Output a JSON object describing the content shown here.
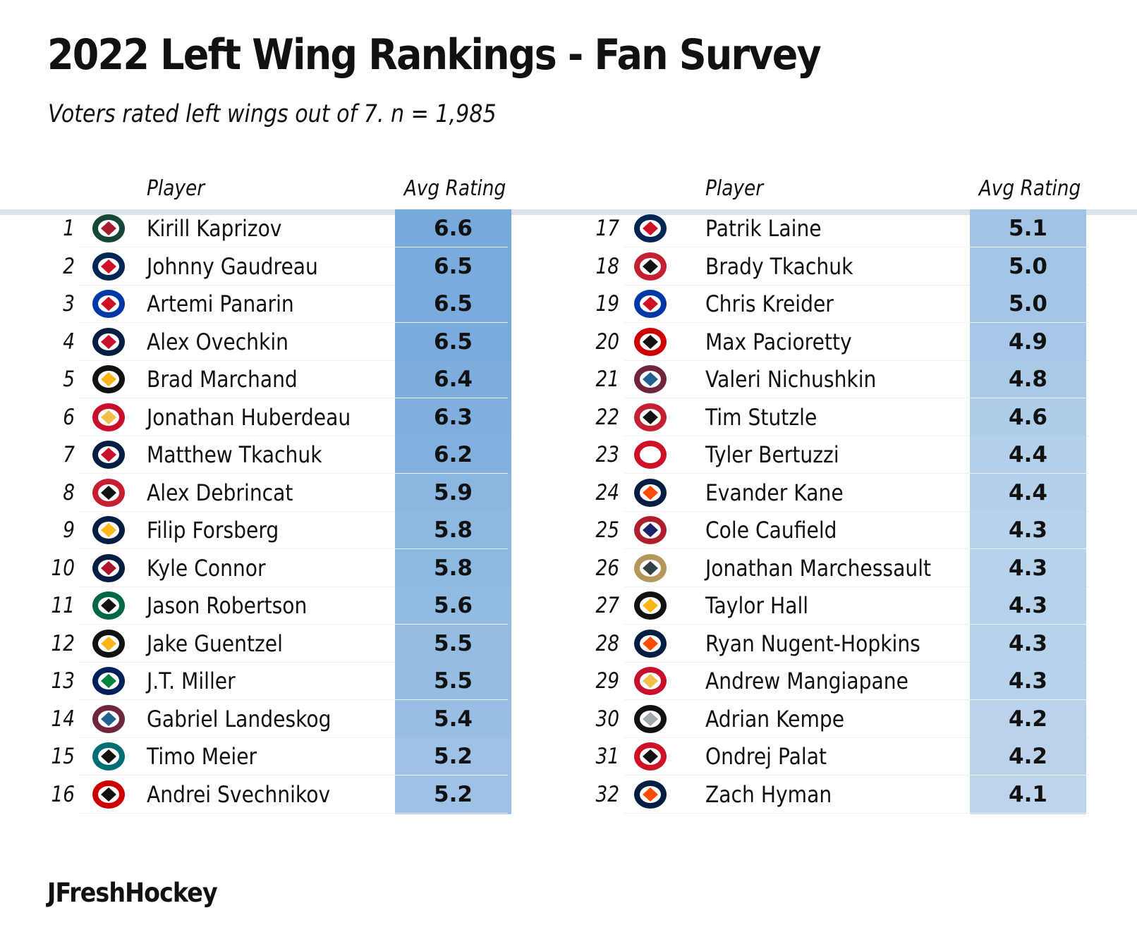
{
  "title": "2022 Left Wing Rankings - Fan Survey",
  "subtitle": "Voters rated left wings out of 7. n = 1,985",
  "credit": "JFreshHockey",
  "columns": {
    "player": "Player",
    "rating": "Avg Rating"
  },
  "colors": {
    "high": "#76aadb",
    "low": "#bdd5ec",
    "header_rule": "#dce3eb"
  },
  "team_colors": {
    "MIN": [
      "#154734",
      "#a6192e"
    ],
    "CBJ": [
      "#002654",
      "#ce1126"
    ],
    "NYR": [
      "#0038a8",
      "#ce1126"
    ],
    "WSH": [
      "#041e42",
      "#c8102e"
    ],
    "BOS": [
      "#111111",
      "#fcb514"
    ],
    "CGY": [
      "#c8102e",
      "#f1be48"
    ],
    "FLA": [
      "#041e42",
      "#c8102e"
    ],
    "OTT": [
      "#c52032",
      "#111111"
    ],
    "NSH": [
      "#041e42",
      "#ffb81c"
    ],
    "WPG": [
      "#041e42",
      "#ac162c"
    ],
    "DAL": [
      "#006847",
      "#111111"
    ],
    "PIT": [
      "#111111",
      "#fcb514"
    ],
    "VAN": [
      "#00205b",
      "#00843d"
    ],
    "COL": [
      "#6f263d",
      "#236192"
    ],
    "SJS": [
      "#006d75",
      "#111111"
    ],
    "CAR": [
      "#cc0000",
      "#111111"
    ],
    "DET": [
      "#ce1126",
      "#ffffff"
    ],
    "EDM": [
      "#041e42",
      "#ff4c00"
    ],
    "MTL": [
      "#af1e2d",
      "#192168"
    ],
    "VGK": [
      "#b4975a",
      "#333f42"
    ],
    "LAK": [
      "#111111",
      "#a2aaad"
    ],
    "NJD": [
      "#ce1126",
      "#111111"
    ]
  },
  "chart_data": {
    "type": "table",
    "rating_max": 7,
    "rating_range": [
      4.1,
      6.6
    ],
    "rows": [
      {
        "rank": "1",
        "player": "Kirill Kaprizov",
        "team": "MIN",
        "rating": 6.6,
        "rating_label": "6.6"
      },
      {
        "rank": "2",
        "player": "Johnny Gaudreau",
        "team": "CBJ",
        "rating": 6.5,
        "rating_label": "6.5"
      },
      {
        "rank": "3",
        "player": "Artemi Panarin",
        "team": "NYR",
        "rating": 6.5,
        "rating_label": "6.5"
      },
      {
        "rank": "4",
        "player": "Alex Ovechkin",
        "team": "WSH",
        "rating": 6.5,
        "rating_label": "6.5"
      },
      {
        "rank": "5",
        "player": "Brad Marchand",
        "team": "BOS",
        "rating": 6.4,
        "rating_label": "6.4"
      },
      {
        "rank": "6",
        "player": "Jonathan Huberdeau",
        "team": "CGY",
        "rating": 6.3,
        "rating_label": "6.3"
      },
      {
        "rank": "7",
        "player": "Matthew Tkachuk",
        "team": "FLA",
        "rating": 6.2,
        "rating_label": "6.2"
      },
      {
        "rank": "8",
        "player": "Alex Debrincat",
        "team": "OTT",
        "rating": 5.9,
        "rating_label": "5.9"
      },
      {
        "rank": "9",
        "player": "Filip Forsberg",
        "team": "NSH",
        "rating": 5.8,
        "rating_label": "5.8"
      },
      {
        "rank": "10",
        "player": "Kyle Connor",
        "team": "WPG",
        "rating": 5.8,
        "rating_label": "5.8"
      },
      {
        "rank": "11",
        "player": "Jason Robertson",
        "team": "DAL",
        "rating": 5.6,
        "rating_label": "5.6"
      },
      {
        "rank": "12",
        "player": "Jake Guentzel",
        "team": "PIT",
        "rating": 5.5,
        "rating_label": "5.5"
      },
      {
        "rank": "13",
        "player": "J.T. Miller",
        "team": "VAN",
        "rating": 5.5,
        "rating_label": "5.5"
      },
      {
        "rank": "14",
        "player": "Gabriel Landeskog",
        "team": "COL",
        "rating": 5.4,
        "rating_label": "5.4"
      },
      {
        "rank": "15",
        "player": "Timo Meier",
        "team": "SJS",
        "rating": 5.2,
        "rating_label": "5.2"
      },
      {
        "rank": "16",
        "player": "Andrei Svechnikov",
        "team": "CAR",
        "rating": 5.2,
        "rating_label": "5.2"
      },
      {
        "rank": "17",
        "player": "Patrik Laine",
        "team": "CBJ",
        "rating": 5.1,
        "rating_label": "5.1"
      },
      {
        "rank": "18",
        "player": "Brady Tkachuk",
        "team": "OTT",
        "rating": 5.0,
        "rating_label": "5.0"
      },
      {
        "rank": "19",
        "player": "Chris Kreider",
        "team": "NYR",
        "rating": 5.0,
        "rating_label": "5.0"
      },
      {
        "rank": "20",
        "player": "Max Pacioretty",
        "team": "CAR",
        "rating": 4.9,
        "rating_label": "4.9"
      },
      {
        "rank": "21",
        "player": "Valeri Nichushkin",
        "team": "COL",
        "rating": 4.8,
        "rating_label": "4.8"
      },
      {
        "rank": "22",
        "player": "Tim Stutzle",
        "team": "OTT",
        "rating": 4.6,
        "rating_label": "4.6"
      },
      {
        "rank": "23",
        "player": "Tyler Bertuzzi",
        "team": "DET",
        "rating": 4.4,
        "rating_label": "4.4"
      },
      {
        "rank": "24",
        "player": "Evander Kane",
        "team": "EDM",
        "rating": 4.4,
        "rating_label": "4.4"
      },
      {
        "rank": "25",
        "player": "Cole Caufield",
        "team": "MTL",
        "rating": 4.3,
        "rating_label": "4.3"
      },
      {
        "rank": "26",
        "player": "Jonathan Marchessault",
        "team": "VGK",
        "rating": 4.3,
        "rating_label": "4.3"
      },
      {
        "rank": "27",
        "player": "Taylor Hall",
        "team": "BOS",
        "rating": 4.3,
        "rating_label": "4.3"
      },
      {
        "rank": "28",
        "player": "Ryan Nugent-Hopkins",
        "team": "EDM",
        "rating": 4.3,
        "rating_label": "4.3"
      },
      {
        "rank": "29",
        "player": "Andrew Mangiapane",
        "team": "CGY",
        "rating": 4.3,
        "rating_label": "4.3"
      },
      {
        "rank": "30",
        "player": "Adrian Kempe",
        "team": "LAK",
        "rating": 4.2,
        "rating_label": "4.2"
      },
      {
        "rank": "31",
        "player": "Ondrej Palat",
        "team": "NJD",
        "rating": 4.2,
        "rating_label": "4.2"
      },
      {
        "rank": "32",
        "player": "Zach Hyman",
        "team": "EDM",
        "rating": 4.1,
        "rating_label": "4.1"
      }
    ]
  }
}
